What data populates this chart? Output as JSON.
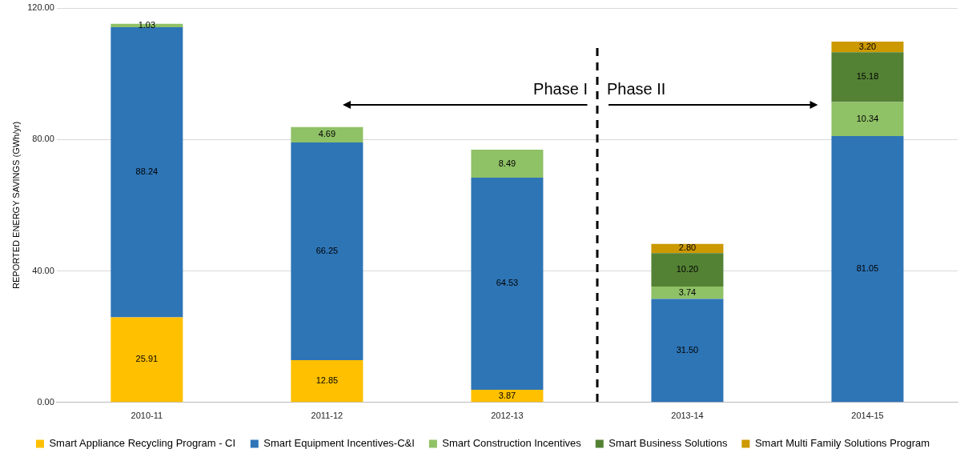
{
  "chart_data": {
    "type": "bar",
    "stacked": true,
    "categories": [
      "2010-11",
      "2011-12",
      "2012-13",
      "2013-14",
      "2014-15"
    ],
    "ylabel": "REPORTED ENERGY SAVINGS (GWh/yr)",
    "ylim": [
      0,
      120
    ],
    "yticks": [
      {
        "value": 0,
        "label": "0.00"
      },
      {
        "value": 40,
        "label": "40.00"
      },
      {
        "value": 80,
        "label": "80.00"
      },
      {
        "value": 120,
        "label": "120.00"
      }
    ],
    "grid": "y",
    "legend": "bottom",
    "series": [
      {
        "name": "Smart Appliance Recycling Program - CI",
        "color": "#ffc000",
        "values": [
          25.91,
          12.85,
          3.87,
          null,
          null
        ],
        "value_labels": [
          "25.91",
          "12.85",
          "3.87",
          null,
          null
        ]
      },
      {
        "name": "Smart Equipment Incentives-C&I",
        "color": "#2e75b6",
        "values": [
          88.24,
          66.25,
          64.53,
          31.5,
          81.05
        ],
        "value_labels": [
          "88.24",
          "66.25",
          "64.53",
          "31.50",
          "81.05"
        ]
      },
      {
        "name": "Smart Construction Incentives",
        "color": "#8fc166",
        "values": [
          1.03,
          4.69,
          8.49,
          3.74,
          10.34
        ],
        "value_labels": [
          "1.03",
          "4.69",
          "8.49",
          "3.74",
          "10.34"
        ]
      },
      {
        "name": "Smart Business Solutions",
        "color": "#548235",
        "values": [
          null,
          null,
          null,
          10.2,
          15.18
        ],
        "value_labels": [
          null,
          null,
          null,
          "10.20",
          "15.18"
        ]
      },
      {
        "name": "Smart Multi Family Solutions Program",
        "color": "#cc9900",
        "values": [
          null,
          null,
          null,
          2.8,
          3.2
        ],
        "value_labels": [
          null,
          null,
          null,
          "2.80",
          "3.20"
        ]
      }
    ],
    "annotations": [
      "Phase I",
      "Phase II"
    ]
  }
}
